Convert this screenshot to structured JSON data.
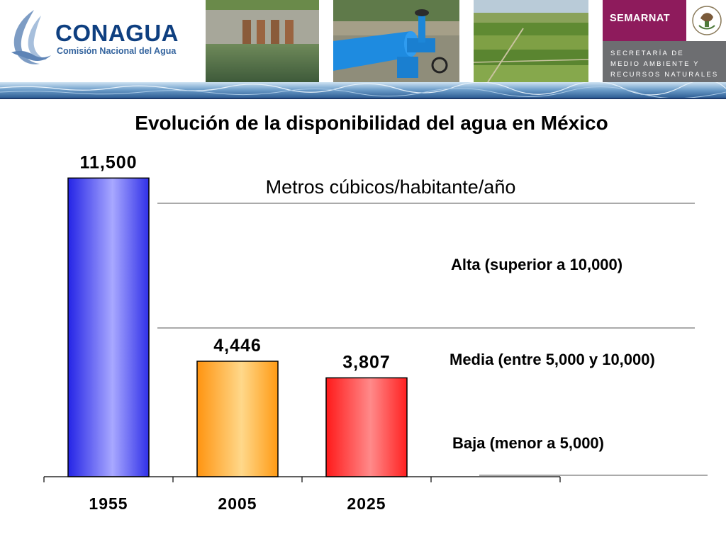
{
  "header": {
    "conagua": {
      "name": "CONAGUA",
      "subtitle": "Comisión Nacional del Agua"
    },
    "semarnat": {
      "name": "SEMARNAT",
      "subtitle": "SECRETARÍA DE\nMEDIO AMBIENTE Y\nRECURSOS NATURALES"
    }
  },
  "colors": {
    "bar_1955": "#3333ff",
    "bar_2005": "#ff9900",
    "bar_2025": "#ff2020",
    "conagua_blue": "#0e3f80",
    "semarnat_magenta": "#8e1b5c"
  },
  "chart_data": {
    "type": "bar",
    "title": "Evolución de la disponibilidad del agua en México",
    "subtitle": "Metros cúbicos/habitante/año",
    "categories": [
      "1955",
      "2005",
      "2025"
    ],
    "values": [
      11500,
      4446,
      3807
    ],
    "value_labels": [
      "11,500",
      "4,446",
      "3,807"
    ],
    "ylim": [
      0,
      15000
    ],
    "grid": false,
    "thresholds": [
      {
        "label": "Alta (superior a 10,000)"
      },
      {
        "label": "Media (entre 5,000 y 10,000)"
      },
      {
        "label": "Baja (menor a 5,000)"
      }
    ]
  }
}
